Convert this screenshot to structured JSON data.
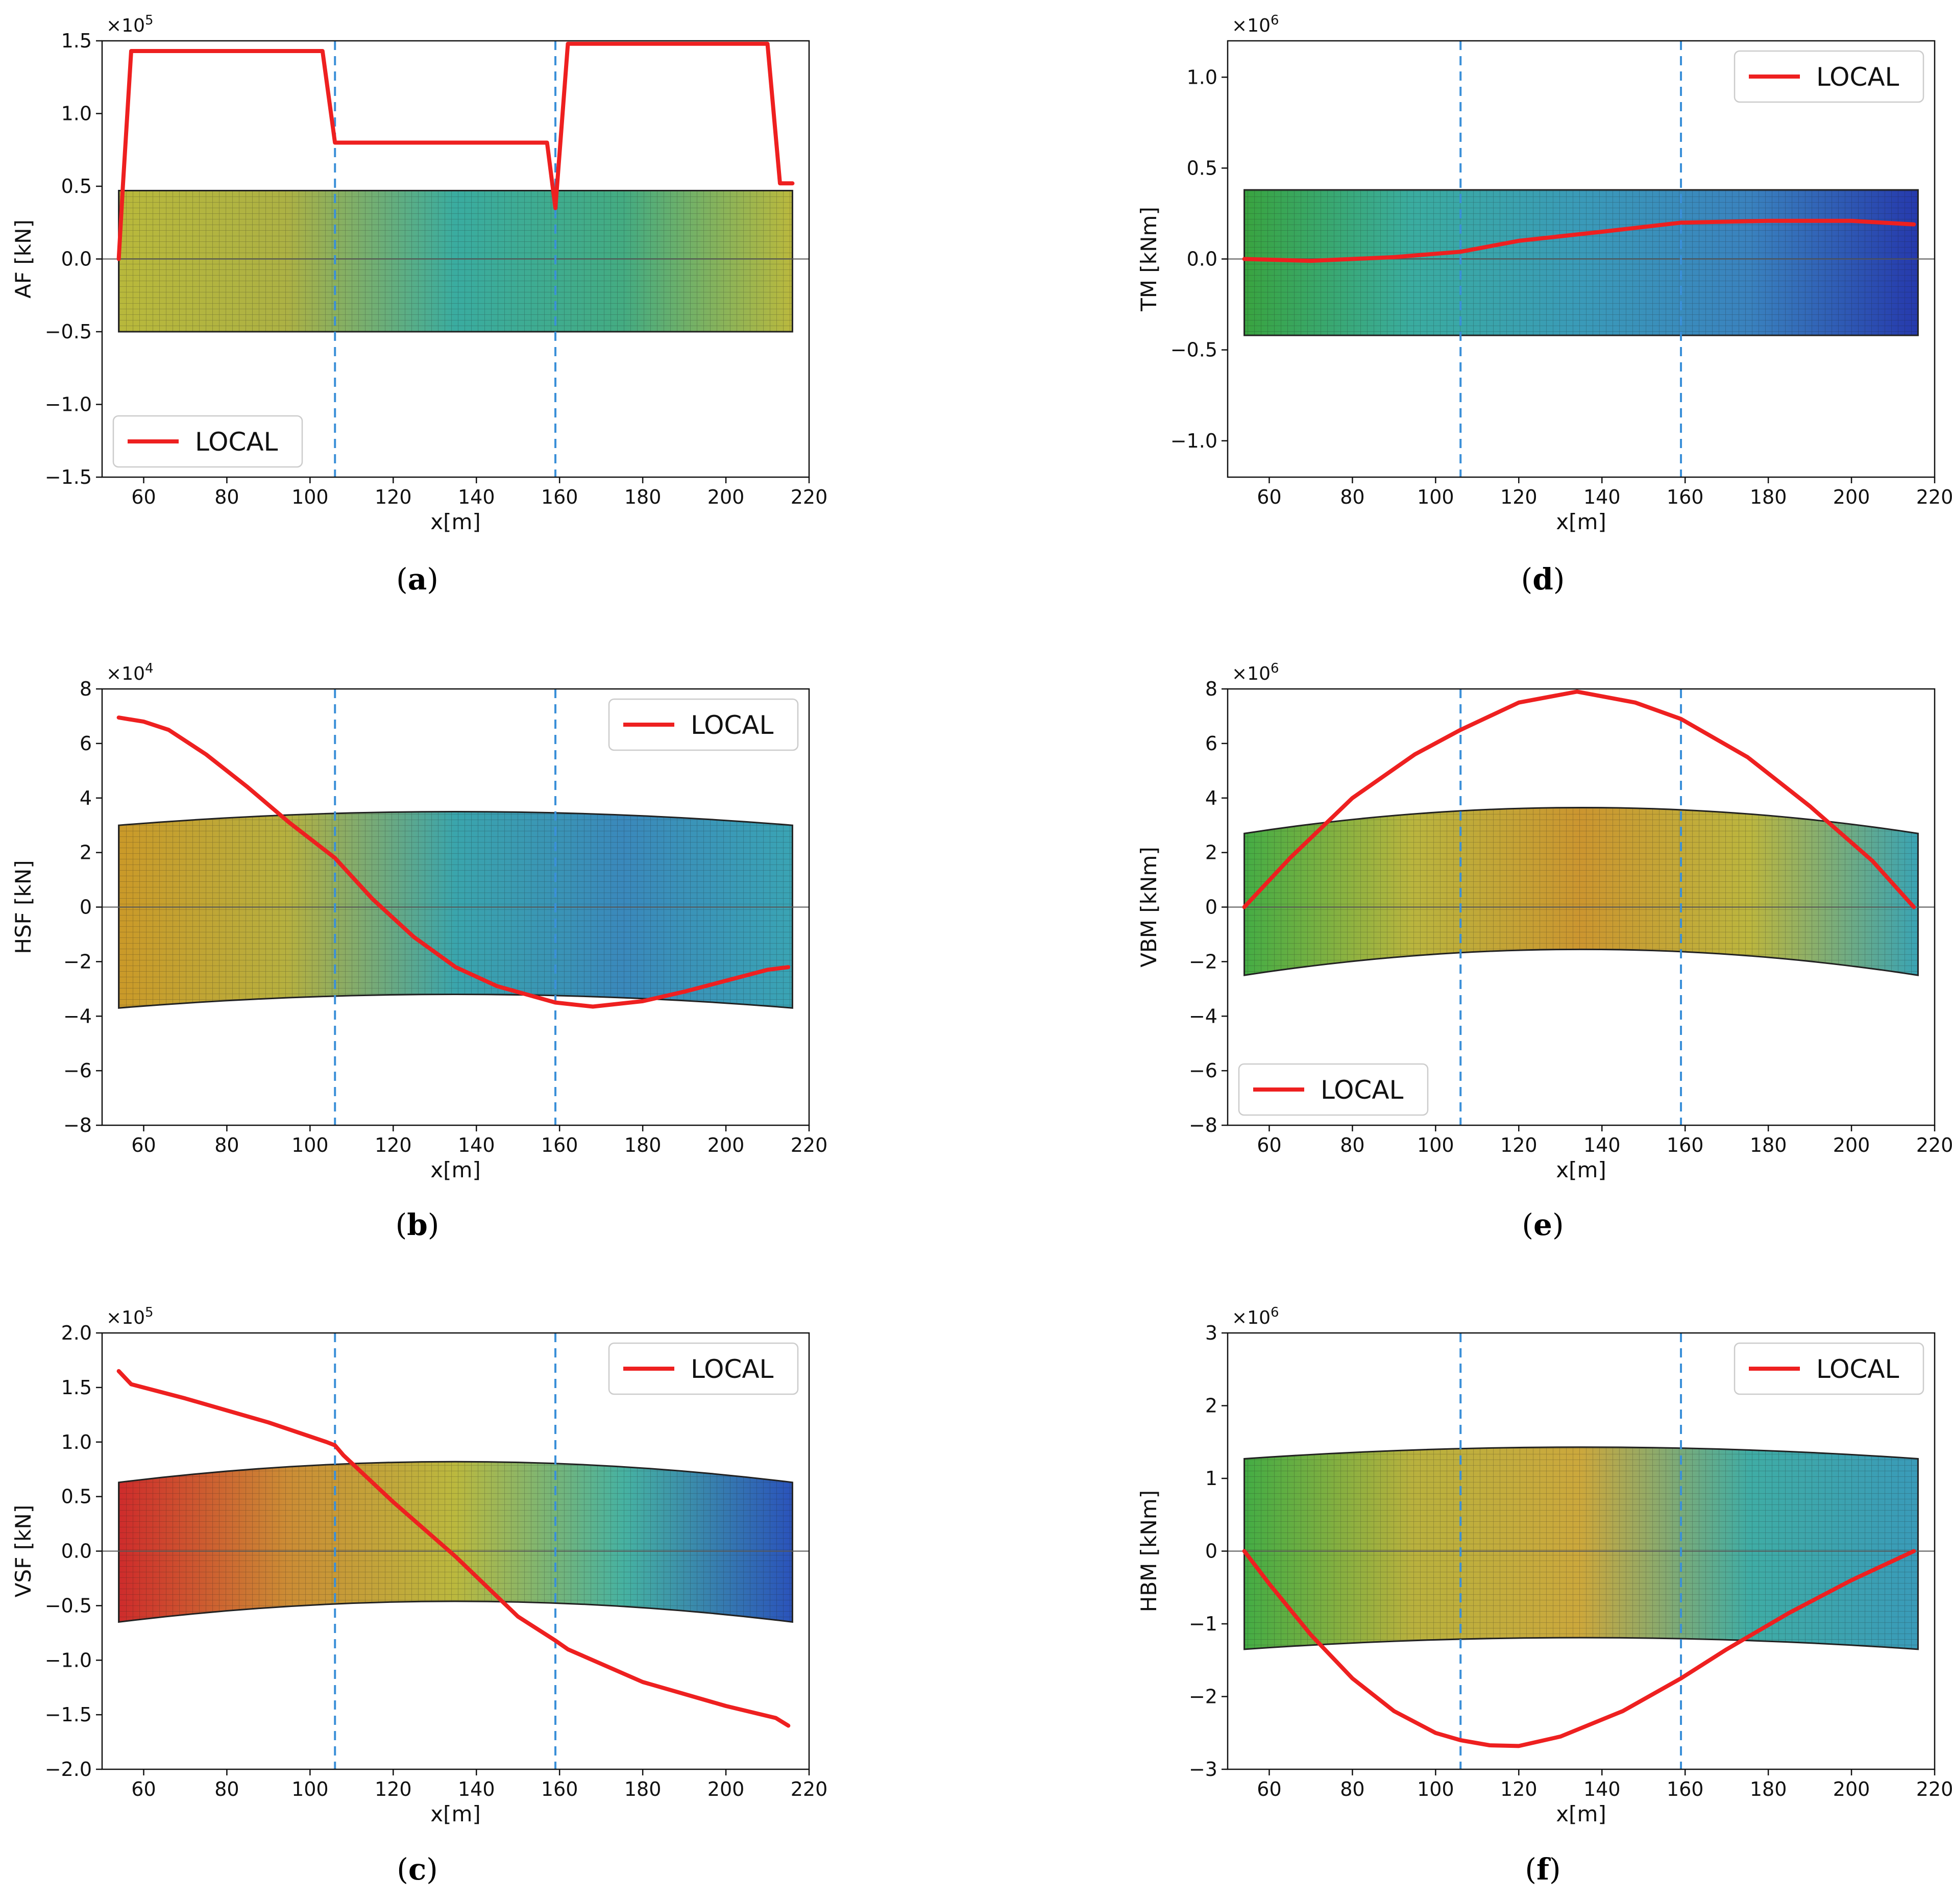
{
  "chart_data": [
    {
      "id": "a",
      "type": "line",
      "caption_letter": "a",
      "ylabel": "AF [kN]",
      "xlabel": "x[m]",
      "multiplier_base": "×10",
      "multiplier_exp": "5",
      "xlim": [
        50,
        220
      ],
      "ylim": [
        -1.5,
        1.5
      ],
      "xticks": [
        60,
        80,
        100,
        120,
        140,
        160,
        180,
        200,
        220
      ],
      "yticks": [
        -1.5,
        -1.0,
        -0.5,
        0.0,
        0.5,
        1.0,
        1.5
      ],
      "ytick_labels": [
        "−1.5",
        "−1.0",
        "−0.5",
        "0.0",
        "0.5",
        "1.0",
        "1.5"
      ],
      "legend": {
        "label": "LOCAL",
        "position": "lower-left"
      },
      "dividers_x": [
        106,
        159
      ],
      "band": {
        "shape": "flat",
        "top": 0.47,
        "bottom": -0.5,
        "mid": 0.47,
        "colors": [
          "#b5b531",
          "#a8ad3a",
          "#2fa89b",
          "#3aa77b",
          "#b7b533"
        ]
      },
      "series": [
        {
          "name": "LOCAL",
          "color": "#ee2020",
          "x": [
            54,
            55,
            57,
            103,
            106,
            157,
            159,
            162,
            210,
            213,
            216
          ],
          "y": [
            0.0,
            0.5,
            1.43,
            1.43,
            0.8,
            0.8,
            0.35,
            1.48,
            1.48,
            0.52,
            0.52
          ]
        }
      ]
    },
    {
      "id": "b",
      "type": "line",
      "caption_letter": "b",
      "ylabel": "HSF [kN]",
      "xlabel": "x[m]",
      "multiplier_base": "×10",
      "multiplier_exp": "4",
      "xlim": [
        50,
        220
      ],
      "ylim": [
        -8,
        8
      ],
      "xticks": [
        60,
        80,
        100,
        120,
        140,
        160,
        180,
        200,
        220
      ],
      "yticks": [
        -8,
        -6,
        -4,
        -2,
        0,
        2,
        4,
        6,
        8
      ],
      "ytick_labels": [
        "−8",
        "−6",
        "−4",
        "−2",
        "0",
        "2",
        "4",
        "6",
        "8"
      ],
      "legend": {
        "label": "LOCAL",
        "position": "upper-right"
      },
      "dividers_x": [
        106,
        159
      ],
      "band": {
        "shape": "arch",
        "top": 3.0,
        "bottom": -3.7,
        "mid": 3.5,
        "colors": [
          "#c8941d",
          "#b2ac35",
          "#2fa0a8",
          "#2f82b8",
          "#2f9fb0"
        ]
      },
      "series": [
        {
          "name": "LOCAL",
          "color": "#ee2020",
          "x": [
            54,
            60,
            66,
            75,
            85,
            95,
            106,
            115,
            125,
            135,
            145,
            159,
            168,
            180,
            190,
            200,
            210,
            215
          ],
          "y": [
            6.95,
            6.8,
            6.5,
            5.6,
            4.4,
            3.1,
            1.8,
            0.3,
            -1.1,
            -2.2,
            -2.9,
            -3.5,
            -3.65,
            -3.45,
            -3.1,
            -2.7,
            -2.3,
            -2.2
          ]
        }
      ]
    },
    {
      "id": "c",
      "type": "line",
      "caption_letter": "c",
      "ylabel": "VSF [kN]",
      "xlabel": "x[m]",
      "multiplier_base": "×10",
      "multiplier_exp": "5",
      "xlim": [
        50,
        220
      ],
      "ylim": [
        -2.0,
        2.0
      ],
      "xticks": [
        60,
        80,
        100,
        120,
        140,
        160,
        180,
        200,
        220
      ],
      "yticks": [
        -2.0,
        -1.5,
        -1.0,
        -0.5,
        0.0,
        0.5,
        1.0,
        1.5,
        2.0
      ],
      "ytick_labels": [
        "−2.0",
        "−1.5",
        "−1.0",
        "−0.5",
        "0.0",
        "0.5",
        "1.0",
        "1.5",
        "2.0"
      ],
      "legend": {
        "label": "LOCAL",
        "position": "upper-right"
      },
      "dividers_x": [
        106,
        159
      ],
      "band": {
        "shape": "arch",
        "top": 0.63,
        "bottom": -0.65,
        "mid": 0.82,
        "colors": [
          "#cc2020",
          "#c9862a",
          "#b7b534",
          "#3cae9d",
          "#1f4ab7"
        ]
      },
      "series": [
        {
          "name": "LOCAL",
          "color": "#ee2020",
          "x": [
            54,
            57,
            70,
            90,
            104,
            106,
            108,
            120,
            135,
            150,
            159,
            162,
            180,
            200,
            212,
            215
          ],
          "y": [
            1.65,
            1.53,
            1.4,
            1.18,
            1.0,
            0.97,
            0.88,
            0.45,
            -0.05,
            -0.6,
            -0.82,
            -0.9,
            -1.2,
            -1.42,
            -1.53,
            -1.6
          ]
        }
      ]
    },
    {
      "id": "d",
      "type": "line",
      "caption_letter": "d",
      "ylabel": "TM [kNm]",
      "xlabel": "x[m]",
      "multiplier_base": "×10",
      "multiplier_exp": "6",
      "xlim": [
        50,
        220
      ],
      "ylim": [
        -1.2,
        1.2
      ],
      "xticks": [
        60,
        80,
        100,
        120,
        140,
        160,
        180,
        200,
        220
      ],
      "yticks": [
        -1.0,
        -0.5,
        0.0,
        0.5,
        1.0
      ],
      "ytick_labels": [
        "−1.0",
        "−0.5",
        "0.0",
        "0.5",
        "1.0"
      ],
      "legend": {
        "label": "LOCAL",
        "position": "upper-right"
      },
      "dividers_x": [
        106,
        159
      ],
      "band": {
        "shape": "flat",
        "top": 0.38,
        "bottom": -0.42,
        "mid": 0.38,
        "colors": [
          "#2e9f35",
          "#2fa89b",
          "#2f95b5",
          "#2f7bbb",
          "#1a2fa8"
        ]
      },
      "series": [
        {
          "name": "LOCAL",
          "color": "#ee2020",
          "x": [
            54,
            70,
            90,
            106,
            120,
            140,
            159,
            180,
            200,
            215
          ],
          "y": [
            0.0,
            -0.01,
            0.01,
            0.04,
            0.1,
            0.15,
            0.2,
            0.21,
            0.21,
            0.19
          ]
        }
      ]
    },
    {
      "id": "e",
      "type": "line",
      "caption_letter": "e",
      "ylabel": "VBM [kNm]",
      "xlabel": "x[m]",
      "multiplier_base": "×10",
      "multiplier_exp": "6",
      "xlim": [
        50,
        220
      ],
      "ylim": [
        -8,
        8
      ],
      "xticks": [
        60,
        80,
        100,
        120,
        140,
        160,
        180,
        200,
        220
      ],
      "yticks": [
        -8,
        -6,
        -4,
        -2,
        0,
        2,
        4,
        6,
        8
      ],
      "ytick_labels": [
        "−8",
        "−6",
        "−4",
        "−2",
        "0",
        "2",
        "4",
        "6",
        "8"
      ],
      "legend": {
        "label": "LOCAL",
        "position": "lower-left"
      },
      "dividers_x": [
        106,
        159
      ],
      "band": {
        "shape": "arch",
        "top": 2.7,
        "bottom": -2.5,
        "mid": 3.65,
        "colors": [
          "#3aa83a",
          "#b6b134",
          "#c99024",
          "#b8b234",
          "#2f9fb0"
        ]
      },
      "series": [
        {
          "name": "LOCAL",
          "color": "#ee2020",
          "x": [
            54,
            65,
            80,
            95,
            106,
            120,
            134,
            148,
            159,
            175,
            190,
            205,
            215
          ],
          "y": [
            0.0,
            1.8,
            4.0,
            5.6,
            6.5,
            7.5,
            7.9,
            7.5,
            6.9,
            5.5,
            3.7,
            1.7,
            0.0
          ]
        }
      ]
    },
    {
      "id": "f",
      "type": "line",
      "caption_letter": "f",
      "ylabel": "HBM [kNm]",
      "xlabel": "x[m]",
      "multiplier_base": "×10",
      "multiplier_exp": "6",
      "xlim": [
        50,
        220
      ],
      "ylim": [
        -3,
        3
      ],
      "xticks": [
        60,
        80,
        100,
        120,
        140,
        160,
        180,
        200,
        220
      ],
      "yticks": [
        -3,
        -2,
        -1,
        0,
        1,
        2,
        3
      ],
      "ytick_labels": [
        "−3",
        "−2",
        "−1",
        "0",
        "1",
        "2",
        "3"
      ],
      "legend": {
        "label": "LOCAL",
        "position": "upper-right"
      },
      "dividers_x": [
        106,
        159
      ],
      "band": {
        "shape": "arch",
        "top": 1.27,
        "bottom": -1.35,
        "mid": 1.43,
        "colors": [
          "#39a83a",
          "#b5ad33",
          "#c9a332",
          "#35a8a0",
          "#2f95b5"
        ]
      },
      "series": [
        {
          "name": "LOCAL",
          "color": "#ee2020",
          "x": [
            54,
            60,
            70,
            80,
            90,
            100,
            106,
            113,
            120,
            130,
            145,
            159,
            170,
            185,
            200,
            215
          ],
          "y": [
            0.0,
            -0.45,
            -1.15,
            -1.75,
            -2.2,
            -2.5,
            -2.6,
            -2.67,
            -2.68,
            -2.55,
            -2.2,
            -1.75,
            -1.35,
            -0.85,
            -0.4,
            0.0
          ]
        }
      ]
    }
  ]
}
